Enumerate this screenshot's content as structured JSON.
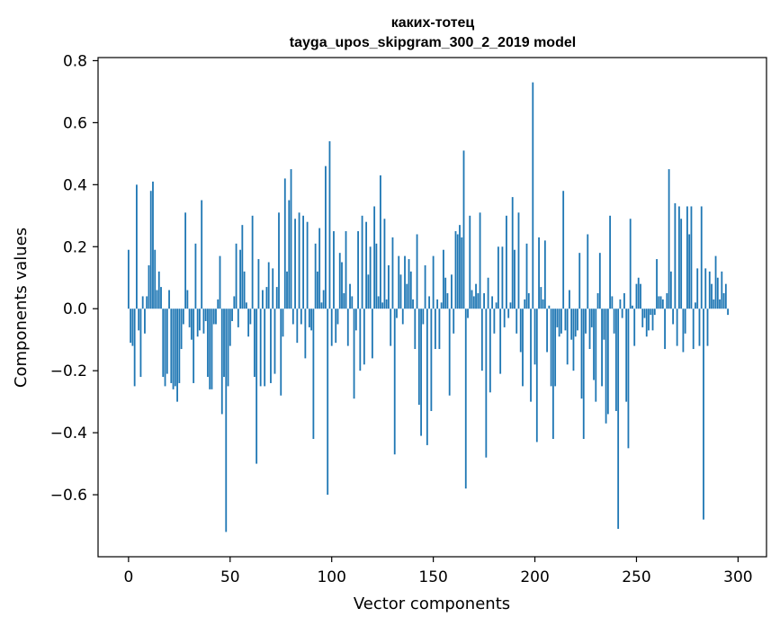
{
  "chart_data": {
    "type": "bar",
    "title_line1": "каких-тотец",
    "title_line2": "tayga_upos_skipgram_300_2_2019 model",
    "xlabel": "Vector components",
    "ylabel": "Components values",
    "xlim": [
      -15,
      314
    ],
    "ylim": [
      -0.8,
      0.81
    ],
    "xticks": [
      0,
      50,
      100,
      150,
      200,
      250,
      300
    ],
    "xtick_labels": [
      "0",
      "50",
      "100",
      "150",
      "200",
      "250",
      "300"
    ],
    "yticks": [
      -0.6,
      -0.4,
      -0.2,
      0.0,
      0.2,
      0.4,
      0.6,
      0.8
    ],
    "ytick_labels": [
      "−0.6",
      "−0.4",
      "−0.2",
      "0.0",
      "0.2",
      "0.4",
      "0.6",
      "0.8"
    ],
    "bar_color": "#1f77b4",
    "values": [
      0.19,
      -0.11,
      -0.12,
      -0.25,
      0.4,
      -0.07,
      -0.22,
      0.04,
      -0.08,
      0.04,
      0.14,
      0.38,
      0.41,
      0.19,
      0.06,
      0.12,
      0.07,
      -0.22,
      -0.25,
      -0.21,
      0.06,
      -0.24,
      -0.26,
      -0.25,
      -0.3,
      -0.24,
      -0.13,
      -0.05,
      0.31,
      0.06,
      -0.06,
      -0.1,
      -0.24,
      0.21,
      -0.09,
      -0.07,
      0.35,
      -0.08,
      -0.04,
      -0.22,
      -0.26,
      -0.26,
      -0.05,
      -0.05,
      0.03,
      0.17,
      -0.34,
      -0.22,
      -0.72,
      -0.25,
      -0.12,
      -0.04,
      0.04,
      0.21,
      -0.06,
      0.19,
      0.27,
      0.12,
      0.02,
      -0.09,
      -0.05,
      0.3,
      -0.22,
      -0.5,
      0.16,
      -0.25,
      0.06,
      -0.25,
      0.07,
      0.15,
      -0.24,
      0.13,
      -0.21,
      0.07,
      0.31,
      -0.28,
      -0.09,
      0.42,
      0.12,
      0.35,
      0.45,
      -0.05,
      0.29,
      -0.11,
      0.31,
      -0.05,
      0.3,
      -0.16,
      0.28,
      -0.06,
      -0.07,
      -0.42,
      0.21,
      0.12,
      0.26,
      0.02,
      0.06,
      0.46,
      -0.6,
      0.54,
      -0.12,
      0.25,
      -0.11,
      -0.05,
      0.18,
      0.15,
      0.05,
      0.25,
      -0.12,
      0.08,
      0.04,
      -0.29,
      -0.07,
      0.25,
      -0.2,
      0.3,
      -0.18,
      0.28,
      0.11,
      0.2,
      -0.16,
      0.33,
      0.21,
      0.04,
      0.43,
      0.02,
      0.29,
      0.03,
      0.14,
      -0.12,
      0.23,
      -0.47,
      -0.03,
      0.17,
      0.11,
      -0.05,
      0.17,
      0.08,
      0.16,
      0.12,
      0.03,
      -0.13,
      0.24,
      -0.31,
      -0.41,
      -0.05,
      0.14,
      -0.44,
      0.04,
      -0.33,
      0.17,
      -0.13,
      0.03,
      -0.13,
      0.02,
      0.19,
      0.1,
      0.05,
      -0.28,
      0.11,
      -0.08,
      0.25,
      0.24,
      0.27,
      0.23,
      0.51,
      -0.58,
      -0.03,
      0.3,
      0.06,
      0.04,
      0.08,
      0.05,
      0.31,
      -0.2,
      0.05,
      -0.48,
      0.1,
      -0.27,
      0.04,
      -0.08,
      0.02,
      0.2,
      -0.21,
      0.2,
      -0.06,
      0.3,
      -0.03,
      0.02,
      0.36,
      0.19,
      -0.08,
      0.31,
      -0.14,
      -0.25,
      0.03,
      0.21,
      0.05,
      -0.3,
      0.73,
      -0.18,
      -0.43,
      0.23,
      0.07,
      0.03,
      0.22,
      -0.14,
      0.01,
      -0.25,
      -0.42,
      -0.25,
      -0.06,
      -0.09,
      -0.08,
      0.38,
      -0.07,
      -0.18,
      0.06,
      -0.1,
      -0.2,
      -0.09,
      -0.07,
      0.18,
      -0.29,
      -0.42,
      -0.08,
      0.24,
      -0.13,
      -0.06,
      -0.23,
      -0.3,
      0.05,
      0.18,
      -0.25,
      -0.1,
      -0.37,
      -0.34,
      0.3,
      0.04,
      -0.08,
      -0.33,
      -0.71,
      0.03,
      -0.03,
      0.05,
      -0.3,
      -0.45,
      0.29,
      0.01,
      -0.12,
      0.08,
      0.1,
      0.08,
      -0.06,
      -0.03,
      -0.09,
      -0.07,
      -0.02,
      -0.07,
      -0.02,
      0.16,
      0.04,
      0.04,
      0.03,
      -0.13,
      0.05,
      0.45,
      0.12,
      -0.05,
      0.34,
      -0.12,
      0.33,
      0.29,
      -0.14,
      -0.08,
      0.33,
      0.24,
      0.33,
      -0.13,
      0.02,
      0.13,
      -0.12,
      0.33,
      -0.68,
      0.13,
      -0.12,
      0.12,
      0.08,
      0.03,
      0.17,
      0.1,
      0.03,
      0.12,
      0.05,
      0.08,
      -0.02
    ]
  }
}
